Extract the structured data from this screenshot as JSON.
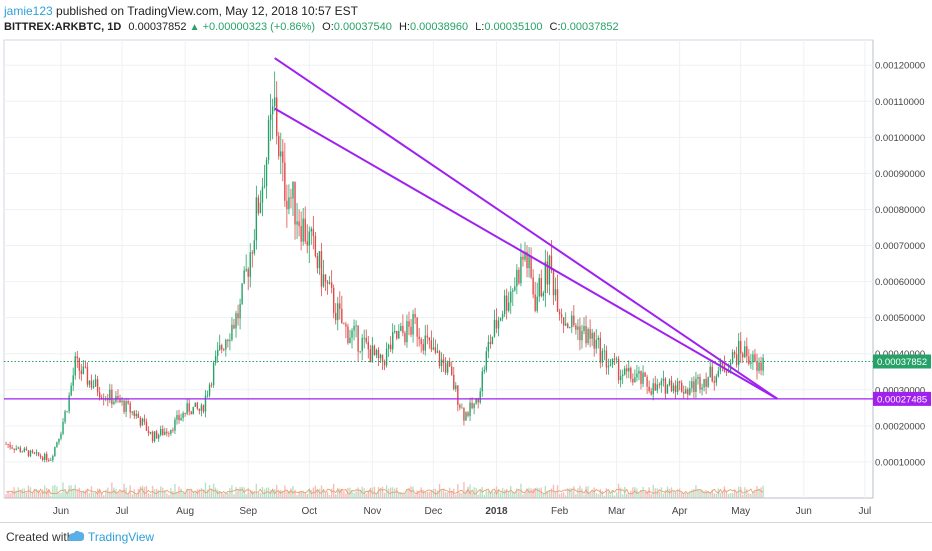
{
  "header": {
    "user": "jamie123",
    "published": " published on TradingView.com, May 12, 2018 10:57 EST",
    "symbol": "BITTREX:ARKBTC, 1D",
    "last": "0.00037852",
    "change": "+0.00000323 (+0.86%)",
    "o_label": "O:",
    "o": "0.00037540",
    "h_label": "H:",
    "h": "0.00038960",
    "l_label": "L:",
    "l": "0.00035100",
    "c_label": "C:",
    "c": "0.00037852"
  },
  "footer": {
    "created": "Created with",
    "brand": "TradingView"
  },
  "colors": {
    "up": "#26a269",
    "down": "#e04a4a",
    "trend": "#a020f0",
    "support": "#a020f0",
    "price_line": "#26a269"
  },
  "chart_data": {
    "type": "candlestick",
    "symbol": "BITTREX:ARKBTC",
    "interval": "1D",
    "ylim": [
      0,
      0.00127
    ],
    "y_ticks": [
      "0.00010000",
      "0.00020000",
      "0.00030000",
      "0.00040000",
      "0.00050000",
      "0.00060000",
      "0.00070000",
      "0.00080000",
      "0.00090000",
      "0.00100000",
      "0.00110000",
      "0.00120000"
    ],
    "y_tick_values": [
      0.0001,
      0.0002,
      0.0003,
      0.0004,
      0.0005,
      0.0006,
      0.0007,
      0.0008,
      0.0009,
      0.001,
      0.0011,
      0.0012
    ],
    "x_ticks": [
      "Jun",
      "Jul",
      "Aug",
      "Sep",
      "Oct",
      "Nov",
      "Dec",
      "2018",
      "Feb",
      "Mar",
      "Apr",
      "May",
      "Jun",
      "Jul"
    ],
    "x_tick_dates": [
      "2017-06-01",
      "2017-07-01",
      "2017-08-01",
      "2017-09-01",
      "2017-10-01",
      "2017-11-01",
      "2017-12-01",
      "2018-01-01",
      "2018-02-01",
      "2018-03-01",
      "2018-04-01",
      "2018-05-01",
      "2018-06-01",
      "2018-07-01"
    ],
    "x_range": [
      "2017-05-04",
      "2018-07-05"
    ],
    "grid": true,
    "price_label": "0.00037852",
    "price_value": 0.00037852,
    "support_label": "0.00027485",
    "support_value": 0.00027485,
    "trendlines": [
      {
        "from": [
          "2017-09-14",
          0.00122
        ],
        "to": [
          "2018-05-19",
          0.000275
        ]
      },
      {
        "from": [
          "2017-09-14",
          0.00108
        ],
        "to": [
          "2018-05-19",
          0.000275
        ]
      }
    ],
    "price_path": [
      [
        "2017-05-05",
        0.00015
      ],
      [
        "2017-05-18",
        0.00012
      ],
      [
        "2017-05-27",
        0.00011
      ],
      [
        "2017-06-01",
        0.00019
      ],
      [
        "2017-06-05",
        0.00028
      ],
      [
        "2017-06-08",
        0.00037
      ],
      [
        "2017-06-14",
        0.00033
      ],
      [
        "2017-06-22",
        0.00029
      ],
      [
        "2017-07-01",
        0.00026
      ],
      [
        "2017-07-08",
        0.00023
      ],
      [
        "2017-07-16",
        0.00017
      ],
      [
        "2017-07-24",
        0.00019
      ],
      [
        "2017-08-03",
        0.00025
      ],
      [
        "2017-08-09",
        0.00024
      ],
      [
        "2017-08-15",
        0.00036
      ],
      [
        "2017-08-21",
        0.00045
      ],
      [
        "2017-08-28",
        0.00052
      ],
      [
        "2017-09-04",
        0.00075
      ],
      [
        "2017-09-10",
        0.00095
      ],
      [
        "2017-09-14",
        0.00108
      ],
      [
        "2017-09-18",
        0.00088
      ],
      [
        "2017-09-23",
        0.00082
      ],
      [
        "2017-10-02",
        0.0007
      ],
      [
        "2017-10-09",
        0.00059
      ],
      [
        "2017-10-18",
        0.00047
      ],
      [
        "2017-10-27",
        0.00043
      ],
      [
        "2017-11-05",
        0.00037
      ],
      [
        "2017-11-12",
        0.00044
      ],
      [
        "2017-11-22",
        0.00048
      ],
      [
        "2017-12-01",
        0.0004
      ],
      [
        "2017-12-08",
        0.00036
      ],
      [
        "2017-12-16",
        0.00023
      ],
      [
        "2017-12-22",
        0.00026
      ],
      [
        "2017-12-28",
        0.00042
      ],
      [
        "2018-01-04",
        0.00053
      ],
      [
        "2018-01-10",
        0.0006
      ],
      [
        "2018-01-15",
        0.00068
      ],
      [
        "2018-01-20",
        0.00055
      ],
      [
        "2018-01-27",
        0.00064
      ],
      [
        "2018-02-03",
        0.0005
      ],
      [
        "2018-02-10",
        0.00047
      ],
      [
        "2018-02-17",
        0.00044
      ],
      [
        "2018-02-24",
        0.00038
      ],
      [
        "2018-03-05",
        0.00034
      ],
      [
        "2018-03-12",
        0.00033
      ],
      [
        "2018-03-20",
        0.0003
      ],
      [
        "2018-03-28",
        0.00032
      ],
      [
        "2018-04-05",
        0.0003
      ],
      [
        "2018-04-12",
        0.00033
      ],
      [
        "2018-04-20",
        0.00035
      ],
      [
        "2018-04-26",
        0.00038
      ],
      [
        "2018-05-01",
        0.00041
      ],
      [
        "2018-05-06",
        0.00039
      ],
      [
        "2018-05-09",
        0.00035
      ],
      [
        "2018-05-12",
        0.00037852
      ]
    ],
    "volume_note": "volume bars with moving-average line at bottom of pane"
  }
}
